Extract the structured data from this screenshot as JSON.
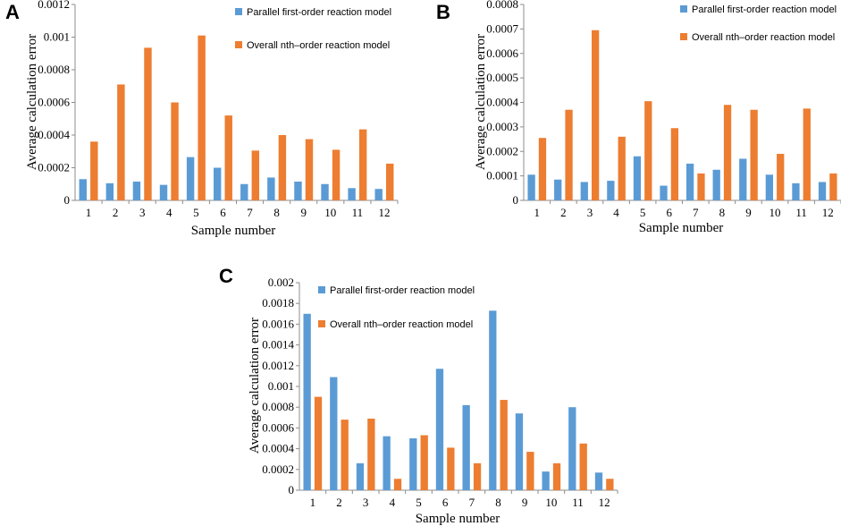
{
  "colors": {
    "series1": "#5B9BD5",
    "series2": "#ED7D31",
    "axis": "#8c8c8c"
  },
  "chart_data": [
    {
      "panel": "A",
      "type": "bar",
      "xlabel": "Sample number",
      "ylabel": "Average calculation error",
      "categories": [
        "1",
        "2",
        "3",
        "4",
        "5",
        "6",
        "7",
        "8",
        "9",
        "10",
        "11",
        "12"
      ],
      "ylim": [
        0,
        0.0012
      ],
      "yticks": [
        0,
        0.0002,
        0.0004,
        0.0006,
        0.0008,
        0.001,
        0.0012
      ],
      "ytick_labels": [
        "0",
        "0.0002",
        "0.0004",
        "0.0006",
        "0.0008",
        "0.001",
        "0.0012"
      ],
      "series": [
        {
          "name": "Parallel first-order reaction model",
          "values": [
            0.00013,
            0.000105,
            0.000115,
            9.5e-05,
            0.000265,
            0.0002,
            0.0001,
            0.00014,
            0.000115,
            0.0001,
            7.5e-05,
            7e-05
          ]
        },
        {
          "name": "Overall nth–order reaction model",
          "values": [
            0.00036,
            0.00071,
            0.000935,
            0.0006,
            0.00101,
            0.00052,
            0.000305,
            0.0004,
            0.000375,
            0.00031,
            0.000435,
            0.000225
          ]
        }
      ]
    },
    {
      "panel": "B",
      "type": "bar",
      "xlabel": "Sample number",
      "ylabel": "Average calculation error",
      "categories": [
        "1",
        "2",
        "3",
        "4",
        "5",
        "6",
        "7",
        "8",
        "9",
        "10",
        "11",
        "12"
      ],
      "ylim": [
        0,
        0.0008
      ],
      "yticks": [
        0,
        0.0001,
        0.0002,
        0.0003,
        0.0004,
        0.0005,
        0.0006,
        0.0007,
        0.0008
      ],
      "ytick_labels": [
        "0",
        "0.0001",
        "0.0002",
        "0.0003",
        "0.0004",
        "0.0005",
        "0.0006",
        "0.0007",
        "0.0008"
      ],
      "series": [
        {
          "name": "Parallel first-order reaction model",
          "values": [
            0.000105,
            8.5e-05,
            7.5e-05,
            8e-05,
            0.00018,
            6e-05,
            0.00015,
            0.000125,
            0.00017,
            0.000105,
            7e-05,
            7.5e-05
          ]
        },
        {
          "name": "Overall nth–order reaction model",
          "values": [
            0.000255,
            0.00037,
            0.000695,
            0.00026,
            0.000405,
            0.000295,
            0.00011,
            0.00039,
            0.00037,
            0.00019,
            0.000375,
            0.00011
          ]
        }
      ]
    },
    {
      "panel": "C",
      "type": "bar",
      "xlabel": "Sample number",
      "ylabel": "Average calculation error",
      "categories": [
        "1",
        "2",
        "3",
        "4",
        "5",
        "6",
        "7",
        "8",
        "9",
        "10",
        "11",
        "12"
      ],
      "ylim": [
        0,
        0.002
      ],
      "yticks": [
        0,
        0.0002,
        0.0004,
        0.0006,
        0.0008,
        0.001,
        0.0012,
        0.0014,
        0.0016,
        0.0018,
        0.002
      ],
      "ytick_labels": [
        "0",
        "0.0002",
        "0.0004",
        "0.0006",
        "0.0008",
        "0.001",
        "0.0012",
        "0.0014",
        "0.0016",
        "0.0018",
        "0.002"
      ],
      "series": [
        {
          "name": "Parallel first-order reaction model",
          "values": [
            0.0017,
            0.00109,
            0.00026,
            0.00052,
            0.0005,
            0.00117,
            0.00082,
            0.00173,
            0.00074,
            0.00018,
            0.0008,
            0.00017
          ]
        },
        {
          "name": "Overall nth–order reaction model",
          "values": [
            0.0009,
            0.00068,
            0.00069,
            0.00011,
            0.00053,
            0.00041,
            0.00026,
            0.00087,
            0.00037,
            0.00026,
            0.00045,
            0.00011
          ]
        }
      ]
    }
  ]
}
